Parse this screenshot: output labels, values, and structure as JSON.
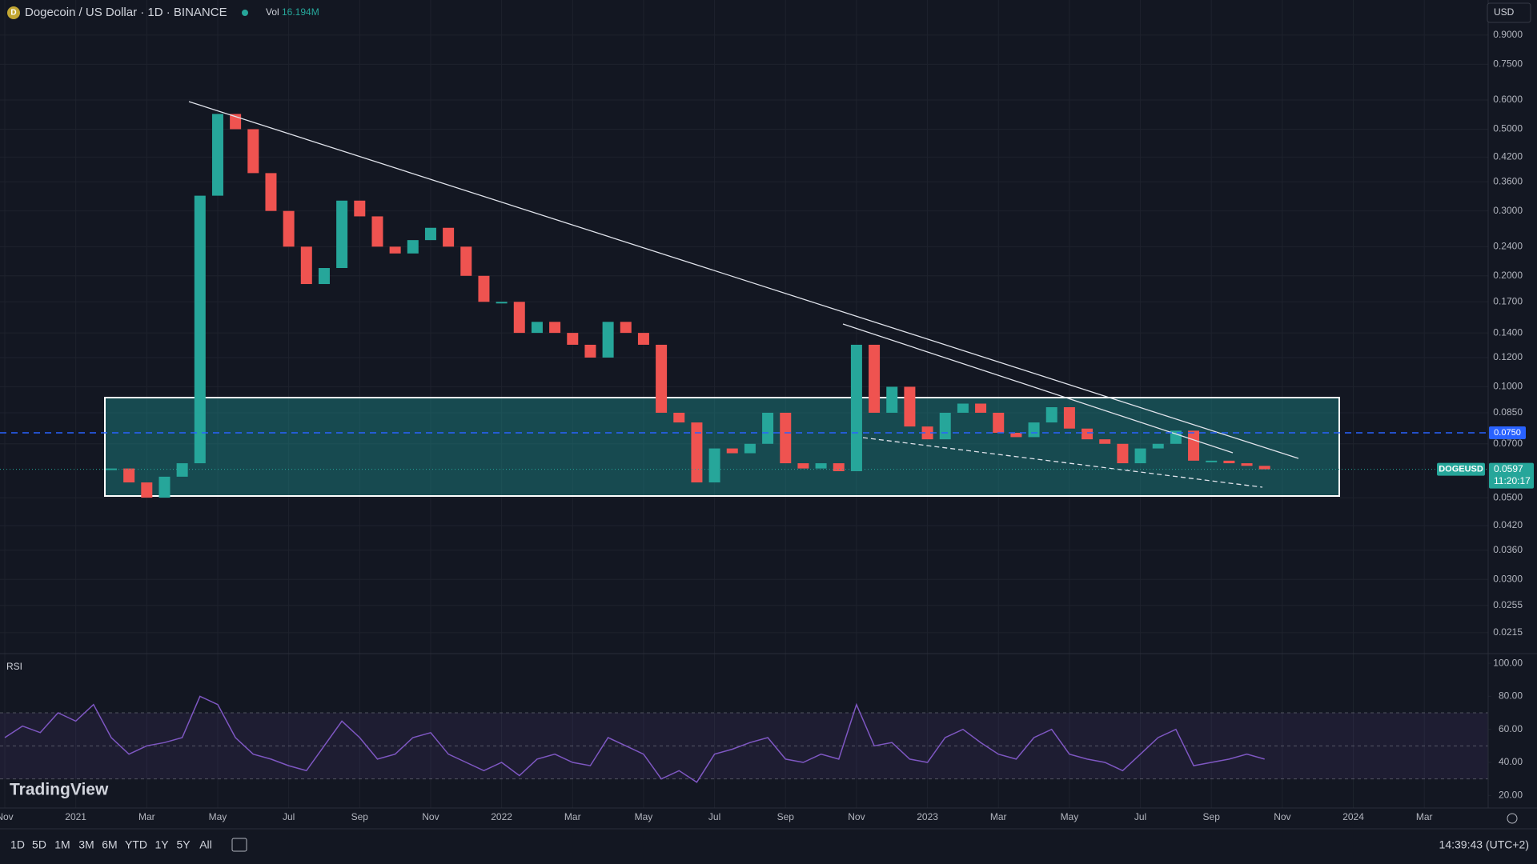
{
  "header": {
    "symbol": "Dogecoin / US Dollar · 1D · BINANCE",
    "volume_label": "Vol",
    "volume": "16.194M",
    "currency": "USD"
  },
  "toolbar": {
    "ranges": [
      "1D",
      "5D",
      "1M",
      "3M",
      "6M",
      "YTD",
      "1Y",
      "5Y",
      "All"
    ],
    "clock": "14:39:43 (UTC+2)"
  },
  "branding": "TradingView",
  "chart_data": [
    {
      "type": "candlestick",
      "title": "DOGEUSD",
      "log_scale": true,
      "grid": true,
      "xlim": [
        -0.27,
        83.6
      ],
      "xticks": [
        {
          "value": 0,
          "label": "Nov"
        },
        {
          "value": 4,
          "label": "2021"
        },
        {
          "value": 8,
          "label": "Mar"
        },
        {
          "value": 12,
          "label": "May"
        },
        {
          "value": 16,
          "label": "Jul"
        },
        {
          "value": 20,
          "label": "Sep"
        },
        {
          "value": 24,
          "label": "Nov"
        },
        {
          "value": 28,
          "label": "2022"
        },
        {
          "value": 32,
          "label": "Mar"
        },
        {
          "value": 36,
          "label": "May"
        },
        {
          "value": 40,
          "label": "Jul"
        },
        {
          "value": 44,
          "label": "Sep"
        },
        {
          "value": 48,
          "label": "Nov"
        },
        {
          "value": 52,
          "label": "2023"
        },
        {
          "value": 56,
          "label": "Mar"
        },
        {
          "value": 60,
          "label": "May"
        },
        {
          "value": 64,
          "label": "Jul"
        },
        {
          "value": 68,
          "label": "Sep"
        },
        {
          "value": 72,
          "label": "Nov"
        },
        {
          "value": 76,
          "label": "2024"
        },
        {
          "value": 80,
          "label": "Mar"
        }
      ],
      "ylim": [
        0.01887,
        1.121
      ],
      "yticks": [
        {
          "value": 0.9,
          "label": "0.9000"
        },
        {
          "value": 0.75,
          "label": "0.7500"
        },
        {
          "value": 0.6,
          "label": "0.6000"
        },
        {
          "value": 0.5,
          "label": "0.5000"
        },
        {
          "value": 0.42,
          "label": "0.4200"
        },
        {
          "value": 0.36,
          "label": "0.3600"
        },
        {
          "value": 0.3,
          "label": "0.3000"
        },
        {
          "value": 0.24,
          "label": "0.2400"
        },
        {
          "value": 0.2,
          "label": "0.2000"
        },
        {
          "value": 0.17,
          "label": "0.1700"
        },
        {
          "value": 0.14,
          "label": "0.1400"
        },
        {
          "value": 0.12,
          "label": "0.1200"
        },
        {
          "value": 0.1,
          "label": "0.1000"
        },
        {
          "value": 0.085,
          "label": "0.0850"
        },
        {
          "value": 0.07,
          "label": "0.0700"
        },
        {
          "value": 0.05,
          "label": "0.0500"
        },
        {
          "value": 0.042,
          "label": "0.0420"
        },
        {
          "value": 0.036,
          "label": "0.0360"
        },
        {
          "value": 0.03,
          "label": "0.0300"
        },
        {
          "value": 0.0255,
          "label": "0.0255"
        },
        {
          "value": 0.0215,
          "label": "0.0215"
        }
      ],
      "up_color": "#26a69a",
      "down_color": "#ef5350",
      "series": [
        {
          "name": "DOGEUSD",
          "values": [
            null,
            null,
            null,
            null,
            null,
            null,
            0.06,
            0.055,
            0.05,
            0.057,
            0.062,
            0.33,
            0.55,
            0.5,
            0.38,
            0.3,
            0.24,
            0.19,
            0.21,
            0.32,
            0.29,
            0.24,
            0.23,
            0.25,
            0.27,
            0.24,
            0.2,
            0.17,
            0.17,
            0.14,
            0.15,
            0.14,
            0.13,
            0.12,
            0.15,
            0.14,
            0.13,
            0.085,
            0.08,
            0.055,
            0.068,
            0.066,
            0.07,
            0.085,
            0.062,
            0.06,
            0.062,
            0.059,
            0.13,
            0.085,
            0.1,
            0.078,
            0.072,
            0.085,
            0.09,
            0.085,
            0.075,
            0.073,
            0.08,
            0.088,
            0.077,
            0.072,
            0.07,
            0.062,
            0.068,
            0.07,
            0.076,
            0.063,
            0.063,
            0.062,
            0.061,
            0.0597
          ]
        }
      ],
      "horizontal_line": {
        "value": 0.075,
        "label": "0.0750",
        "color": "#2962ff"
      },
      "last_price": {
        "value": 0.0597,
        "label": "0.0597",
        "countdown": "11:20:17"
      }
    },
    {
      "type": "line",
      "title": "RSI",
      "color": "#7e57c2",
      "xlim": [
        -0.27,
        83.6
      ],
      "ylim": [
        12.4,
        104.4
      ],
      "yticks": [
        {
          "value": 100,
          "label": "100.00"
        },
        {
          "value": 80,
          "label": "80.00"
        },
        {
          "value": 60,
          "label": "60.00"
        },
        {
          "value": 40,
          "label": "40.00"
        },
        {
          "value": 20,
          "label": "20.00"
        }
      ],
      "bands": [
        70,
        50,
        30
      ],
      "values": [
        55,
        62,
        58,
        70,
        65,
        75,
        55,
        45,
        50,
        52,
        55,
        80,
        75,
        55,
        45,
        42,
        38,
        35,
        50,
        65,
        55,
        42,
        45,
        55,
        58,
        45,
        40,
        35,
        40,
        32,
        42,
        45,
        40,
        38,
        55,
        50,
        45,
        30,
        35,
        28,
        45,
        48,
        52,
        55,
        42,
        40,
        45,
        42,
        75,
        50,
        52,
        42,
        40,
        55,
        60,
        52,
        45,
        42,
        55,
        60,
        45,
        42,
        40,
        35,
        45,
        55,
        60,
        38,
        40,
        42,
        45,
        42
      ]
    }
  ]
}
